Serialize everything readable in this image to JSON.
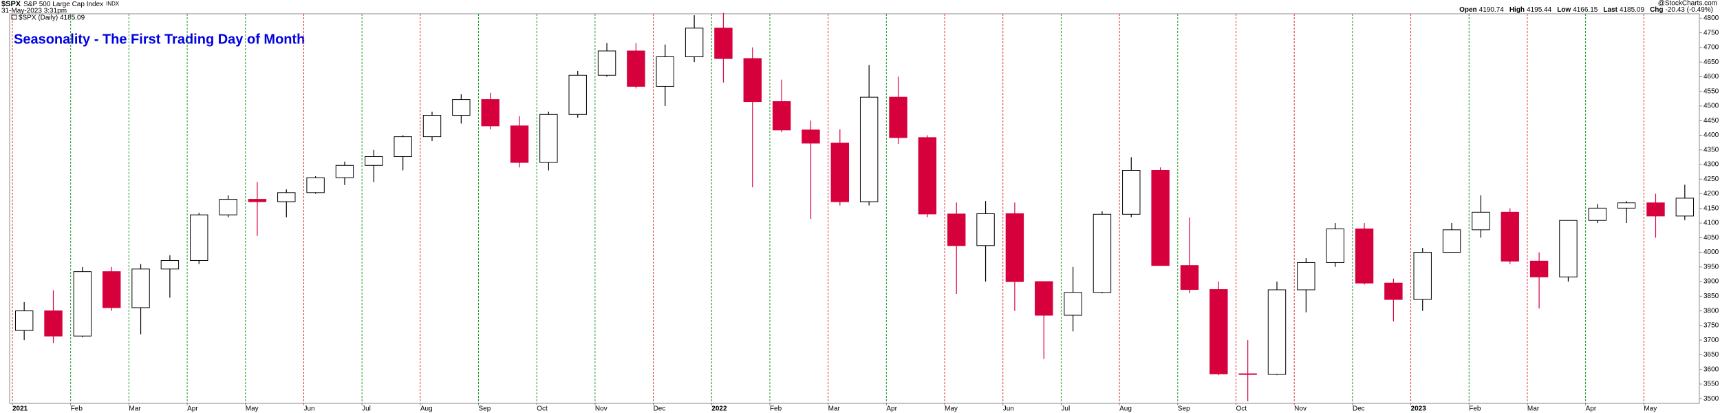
{
  "header": {
    "symbol": "$SPX",
    "name": "S&P 500 Large Cap Index",
    "exchange": "INDX",
    "timestamp": "31-May-2023 3:31pm",
    "source": "@StockCharts.com",
    "quote": [
      {
        "label": "Open",
        "value": "4190.74"
      },
      {
        "label": "High",
        "value": "4195.44"
      },
      {
        "label": "Low",
        "value": "4166.15"
      },
      {
        "label": "Last",
        "value": "4185.09"
      },
      {
        "label": "Chg",
        "value": "-20.43 (-0.49%)"
      }
    ]
  },
  "chart_data": {
    "type": "candlestick",
    "title": "Seasonality - The First Trading Day of Month",
    "legend_label": "$SPX (Daily) 4185.09",
    "categories": [
      "2021",
      null,
      "Feb",
      null,
      "Mar",
      null,
      "Apr",
      null,
      "May",
      null,
      "Jun",
      null,
      "Jul",
      null,
      "Aug",
      null,
      "Sep",
      null,
      "Oct",
      null,
      "Nov",
      null,
      "Dec",
      null,
      "2022",
      null,
      "Feb",
      null,
      "Mar",
      null,
      "Apr",
      null,
      "May",
      null,
      "Jun",
      null,
      "Jul",
      null,
      "Aug",
      null,
      "Sep",
      null,
      "Oct",
      null,
      "Nov",
      null,
      "Dec",
      null,
      "2023",
      null,
      "Feb",
      null,
      "Mar",
      null,
      "Apr",
      null,
      "May",
      null
    ],
    "open": [
      3733,
      3800,
      3714,
      3934,
      3811,
      3943,
      3972,
      4128,
      4181,
      4173,
      4204,
      4255,
      4297,
      4327,
      4395,
      4468,
      4522,
      4432,
      4307,
      4471,
      4605,
      4688,
      4567,
      4668,
      4766,
      4662,
      4515,
      4418,
      4373,
      4173,
      4530,
      4392,
      4131,
      4023,
      4132,
      3900,
      3785,
      3863,
      4130,
      4280,
      3955,
      3873,
      3585,
      3583,
      3872,
      3965,
      4080,
      3895,
      3839,
      4000,
      4077,
      4137,
      3970,
      3916,
      4109,
      4151,
      4169,
      4124
    ],
    "high": [
      3830,
      3870,
      3950,
      3950,
      3960,
      3990,
      4135,
      4195,
      4240,
      4215,
      4260,
      4310,
      4350,
      4400,
      4480,
      4540,
      4545,
      4465,
      4480,
      4620,
      4715,
      4715,
      4710,
      4810,
      4818,
      4700,
      4590,
      4450,
      4420,
      4640,
      4600,
      4400,
      4170,
      4175,
      4170,
      3900,
      3950,
      4140,
      4325,
      4290,
      4119,
      3900,
      3700,
      3900,
      3980,
      4100,
      4100,
      3910,
      4015,
      4100,
      4195,
      4150,
      4000,
      4110,
      4165,
      4175,
      4200,
      4231
    ],
    "low": [
      3700,
      3690,
      3710,
      3800,
      3720,
      3845,
      3960,
      4120,
      4056,
      4120,
      4200,
      4230,
      4240,
      4280,
      4380,
      4440,
      4420,
      4290,
      4280,
      4460,
      4600,
      4560,
      4500,
      4650,
      4580,
      4222,
      4410,
      4114,
      4160,
      4160,
      4370,
      4120,
      3858,
      3900,
      3800,
      3636,
      3730,
      3860,
      4120,
      3955,
      3860,
      3580,
      3491,
      3580,
      3795,
      3950,
      3890,
      3764,
      3800,
      4000,
      4050,
      3960,
      3808,
      3900,
      4100,
      4100,
      4050,
      4110
    ],
    "close": [
      3800,
      3714,
      3934,
      3811,
      3943,
      3972,
      4128,
      4181,
      4173,
      4204,
      4255,
      4297,
      4327,
      4395,
      4468,
      4522,
      4432,
      4307,
      4471,
      4605,
      4688,
      4567,
      4668,
      4766,
      4662,
      4515,
      4418,
      4373,
      4173,
      4530,
      4392,
      4131,
      4023,
      4132,
      3900,
      3785,
      3863,
      4130,
      4280,
      3955,
      3873,
      3585,
      3583,
      3872,
      3965,
      4080,
      3895,
      3839,
      4000,
      4077,
      4137,
      3970,
      3916,
      4109,
      4151,
      4169,
      4124,
      4185
    ],
    "up_color": "#000000",
    "down_color": "#d6003c",
    "month_line_colors": [
      "#e03030",
      "#1a9a1a",
      "#1a9a1a",
      "#1a9a1a",
      "#1a9a1a",
      "#e03030",
      "#1a9a1a",
      "#e03030",
      "#1a9a1a",
      "#1a9a1a",
      "#1a9a1a",
      "#e03030",
      "#1a9a1a",
      "#1a9a1a",
      "#e03030",
      "#1a9a1a",
      "#e03030",
      "#e03030",
      "#1a9a1a",
      "#e03030",
      "#1a9a1a",
      "#e03030",
      "#e03030",
      "#1a9a1a",
      "#e03030",
      "#1a9a1a",
      "#e03030",
      "#1a9a1a",
      "#e03030"
    ],
    "ylim": [
      3484,
      4815
    ],
    "yticks": [
      3500,
      3550,
      3600,
      3650,
      3700,
      3750,
      3800,
      3850,
      3900,
      3950,
      4000,
      4050,
      4100,
      4150,
      4200,
      4250,
      4300,
      4350,
      4400,
      4450,
      4500,
      4550,
      4600,
      4650,
      4700,
      4750,
      4800
    ],
    "y_axis_side": "right"
  }
}
